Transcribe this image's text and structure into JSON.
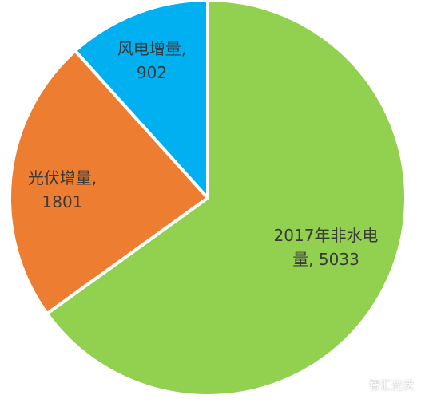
{
  "chart_data": {
    "type": "pie",
    "slices": [
      {
        "label_lines": [
          "2017年非水电",
          "量, 5033"
        ],
        "category": "2017年非水电量",
        "value": 5033,
        "color": "#92d050"
      },
      {
        "label_lines": [
          "光伏增量,",
          "1801"
        ],
        "category": "光伏增量",
        "value": 1801,
        "color": "#ed7d31"
      },
      {
        "label_lines": [
          "风电增量,",
          "902"
        ],
        "category": "风电增量",
        "value": 902,
        "color": "#00b0f0"
      }
    ],
    "start_angle_deg": 0,
    "direction": "clockwise",
    "border_color": "#ffffff"
  },
  "watermark": {
    "icon": "wechat-icon",
    "text": "智汇光伏"
  }
}
